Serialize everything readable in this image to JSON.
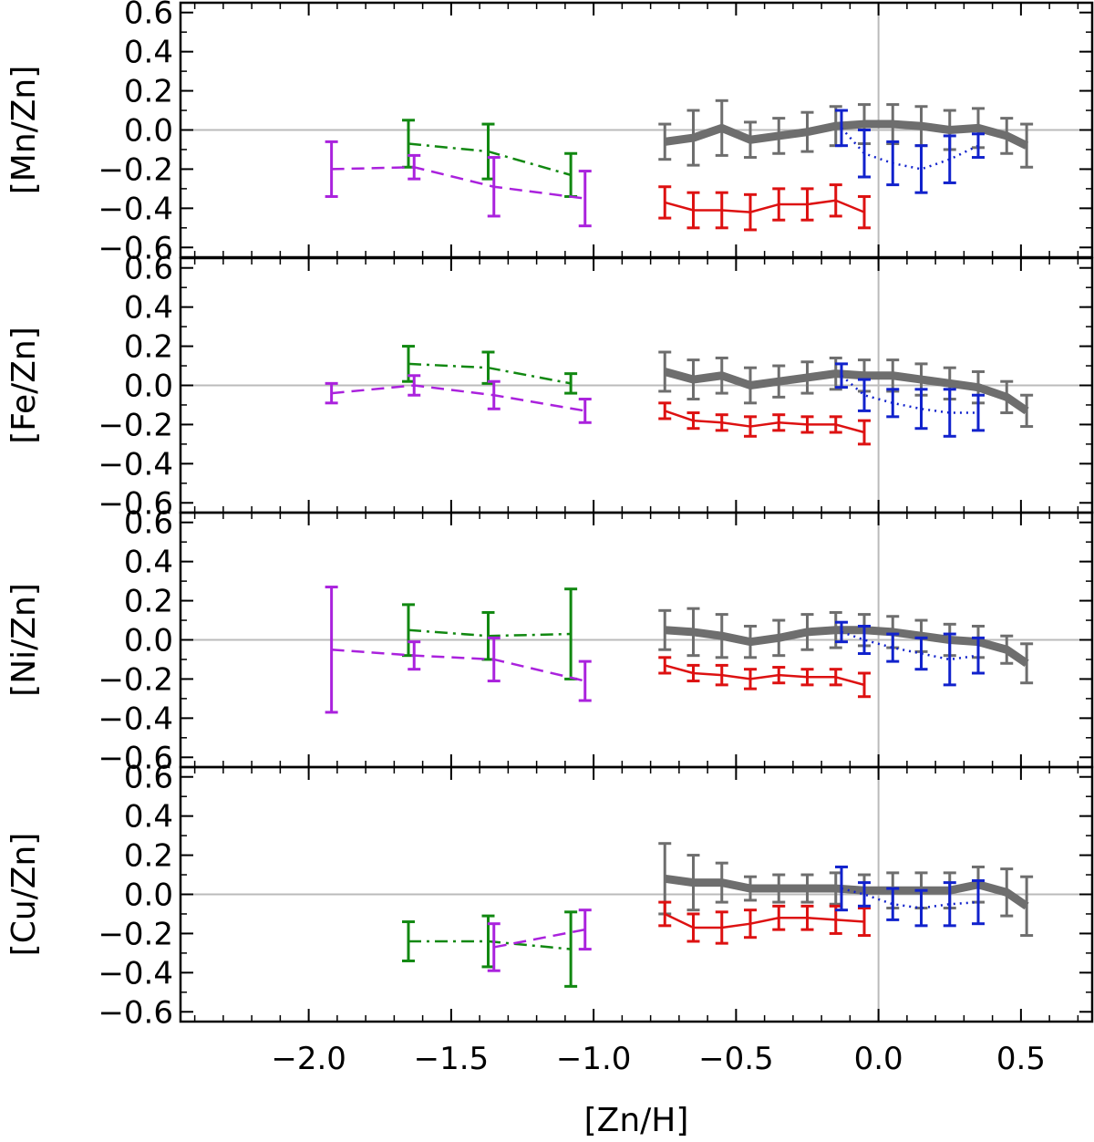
{
  "chart_data": {
    "type": "line",
    "xlabel": "[Zn/H]",
    "xlim": [
      -2.45,
      0.75
    ],
    "x_ticks": [
      -2.0,
      -1.5,
      -1.0,
      -0.5,
      0.0,
      0.5
    ],
    "x_tick_labels": [
      "−2.0",
      "−1.5",
      "−1.0",
      "−0.5",
      "0.0",
      "0.5"
    ],
    "ylim": [
      -0.65,
      0.65
    ],
    "y_ticks": [
      0.6,
      0.4,
      0.2,
      0.0,
      -0.2,
      -0.4,
      -0.6
    ],
    "y_tick_labels": [
      "0.6",
      "0.4",
      "0.2",
      "0.0",
      "−0.2",
      "−0.4",
      "−0.6"
    ],
    "reference_lines": {
      "x": 0.0,
      "y": 0.0,
      "color": "#bbbbbb"
    },
    "series_styles": {
      "grey": {
        "color": "#6e6e6e",
        "dash": "solid",
        "thick": true
      },
      "red": {
        "color": "#dd1111",
        "dash": "solid",
        "thick": false
      },
      "blue": {
        "color": "#1122cc",
        "dash": "dotted",
        "thick": false
      },
      "green": {
        "color": "#118811",
        "dash": "dashdot",
        "thick": false
      },
      "purple": {
        "color": "#aa22dd",
        "dash": "dashed",
        "thick": false
      }
    },
    "panels": [
      {
        "ylabel": "[Mn/Zn]",
        "series": [
          {
            "name": "grey",
            "x": [
              -0.75,
              -0.65,
              -0.55,
              -0.45,
              -0.35,
              -0.25,
              -0.15,
              -0.05,
              0.05,
              0.15,
              0.25,
              0.35,
              0.45,
              0.52
            ],
            "y": [
              -0.06,
              -0.04,
              0.01,
              -0.05,
              -0.03,
              -0.01,
              0.02,
              0.03,
              0.03,
              0.02,
              0.0,
              0.01,
              -0.03,
              -0.08
            ],
            "err": [
              0.09,
              0.14,
              0.14,
              0.09,
              0.09,
              0.1,
              0.1,
              0.1,
              0.1,
              0.1,
              0.1,
              0.1,
              0.09,
              0.11
            ]
          },
          {
            "name": "red",
            "x": [
              -0.75,
              -0.65,
              -0.55,
              -0.45,
              -0.35,
              -0.25,
              -0.15,
              -0.05
            ],
            "y": [
              -0.37,
              -0.41,
              -0.41,
              -0.42,
              -0.38,
              -0.38,
              -0.36,
              -0.42
            ],
            "err": [
              0.08,
              0.09,
              0.09,
              0.09,
              0.08,
              0.08,
              0.08,
              0.08
            ]
          },
          {
            "name": "blue",
            "x": [
              -0.13,
              -0.05,
              0.05,
              0.15,
              0.25,
              0.35
            ],
            "y": [
              0.01,
              -0.12,
              -0.17,
              -0.2,
              -0.15,
              -0.08
            ],
            "err": [
              0.09,
              0.12,
              0.11,
              0.12,
              0.12,
              0.06
            ]
          },
          {
            "name": "green",
            "x": [
              -1.65,
              -1.37,
              -1.08
            ],
            "y": [
              -0.07,
              -0.11,
              -0.23
            ],
            "err": [
              0.12,
              0.14,
              0.11
            ]
          },
          {
            "name": "purple",
            "x": [
              -1.92,
              -1.63,
              -1.35,
              -1.03
            ],
            "y": [
              -0.2,
              -0.19,
              -0.29,
              -0.35
            ],
            "err": [
              0.14,
              0.06,
              0.15,
              0.14
            ]
          }
        ]
      },
      {
        "ylabel": "[Fe/Zn]",
        "series": [
          {
            "name": "grey",
            "x": [
              -0.75,
              -0.65,
              -0.55,
              -0.45,
              -0.35,
              -0.25,
              -0.15,
              -0.05,
              0.05,
              0.15,
              0.25,
              0.35,
              0.45,
              0.52
            ],
            "y": [
              0.07,
              0.03,
              0.05,
              0.0,
              0.02,
              0.04,
              0.06,
              0.05,
              0.05,
              0.03,
              0.01,
              -0.01,
              -0.06,
              -0.13
            ],
            "err": [
              0.1,
              0.1,
              0.09,
              0.09,
              0.08,
              0.08,
              0.08,
              0.08,
              0.08,
              0.08,
              0.08,
              0.08,
              0.08,
              0.08
            ]
          },
          {
            "name": "red",
            "x": [
              -0.75,
              -0.65,
              -0.55,
              -0.45,
              -0.35,
              -0.25,
              -0.15,
              -0.05
            ],
            "y": [
              -0.13,
              -0.18,
              -0.19,
              -0.21,
              -0.19,
              -0.2,
              -0.2,
              -0.24
            ],
            "err": [
              0.04,
              0.04,
              0.04,
              0.05,
              0.04,
              0.04,
              0.04,
              0.06
            ]
          },
          {
            "name": "blue",
            "x": [
              -0.13,
              -0.05,
              0.05,
              0.15,
              0.25,
              0.35
            ],
            "y": [
              0.05,
              -0.05,
              -0.09,
              -0.12,
              -0.14,
              -0.14
            ],
            "err": [
              0.06,
              0.08,
              0.07,
              0.1,
              0.12,
              0.09
            ]
          },
          {
            "name": "green",
            "x": [
              -1.65,
              -1.37,
              -1.08
            ],
            "y": [
              0.11,
              0.09,
              0.01
            ],
            "err": [
              0.09,
              0.08,
              0.05
            ]
          },
          {
            "name": "purple",
            "x": [
              -1.92,
              -1.63,
              -1.35,
              -1.03
            ],
            "y": [
              -0.04,
              0.0,
              -0.05,
              -0.13
            ],
            "err": [
              0.05,
              0.05,
              0.07,
              0.06
            ]
          }
        ]
      },
      {
        "ylabel": "[Ni/Zn]",
        "series": [
          {
            "name": "grey",
            "x": [
              -0.75,
              -0.65,
              -0.55,
              -0.45,
              -0.35,
              -0.25,
              -0.15,
              -0.05,
              0.05,
              0.15,
              0.25,
              0.35,
              0.45,
              0.52
            ],
            "y": [
              0.05,
              0.04,
              0.02,
              -0.01,
              0.01,
              0.04,
              0.05,
              0.05,
              0.04,
              0.02,
              0.0,
              -0.01,
              -0.05,
              -0.12
            ],
            "err": [
              0.1,
              0.12,
              0.11,
              0.08,
              0.09,
              0.09,
              0.09,
              0.08,
              0.08,
              0.08,
              0.08,
              0.08,
              0.07,
              0.1
            ]
          },
          {
            "name": "red",
            "x": [
              -0.75,
              -0.65,
              -0.55,
              -0.45,
              -0.35,
              -0.25,
              -0.15,
              -0.05
            ],
            "y": [
              -0.13,
              -0.17,
              -0.18,
              -0.2,
              -0.18,
              -0.19,
              -0.19,
              -0.23
            ],
            "err": [
              0.04,
              0.04,
              0.05,
              0.05,
              0.04,
              0.04,
              0.04,
              0.06
            ]
          },
          {
            "name": "blue",
            "x": [
              -0.13,
              -0.05,
              0.05,
              0.15,
              0.25,
              0.35
            ],
            "y": [
              0.04,
              0.0,
              -0.04,
              -0.07,
              -0.1,
              -0.08
            ],
            "err": [
              0.05,
              0.07,
              0.07,
              0.08,
              0.13,
              0.09
            ]
          },
          {
            "name": "green",
            "x": [
              -1.65,
              -1.37,
              -1.08
            ],
            "y": [
              0.05,
              0.02,
              0.03
            ],
            "err": [
              0.13,
              0.12,
              0.23
            ]
          },
          {
            "name": "purple",
            "x": [
              -1.92,
              -1.63,
              -1.35,
              -1.03
            ],
            "y": [
              -0.05,
              -0.08,
              -0.1,
              -0.21
            ],
            "err": [
              0.32,
              0.07,
              0.11,
              0.1
            ]
          }
        ]
      },
      {
        "ylabel": "[Cu/Zn]",
        "series": [
          {
            "name": "grey",
            "x": [
              -0.75,
              -0.65,
              -0.55,
              -0.45,
              -0.35,
              -0.25,
              -0.15,
              -0.05,
              0.05,
              0.15,
              0.25,
              0.35,
              0.45,
              0.52
            ],
            "y": [
              0.08,
              0.06,
              0.06,
              0.03,
              0.03,
              0.03,
              0.03,
              0.02,
              0.02,
              0.02,
              0.02,
              0.05,
              0.01,
              -0.06
            ],
            "err": [
              0.18,
              0.14,
              0.1,
              0.06,
              0.07,
              0.07,
              0.08,
              0.08,
              0.09,
              0.09,
              0.09,
              0.09,
              0.12,
              0.15
            ]
          },
          {
            "name": "red",
            "x": [
              -0.75,
              -0.65,
              -0.55,
              -0.45,
              -0.35,
              -0.25,
              -0.15,
              -0.05
            ],
            "y": [
              -0.1,
              -0.17,
              -0.17,
              -0.15,
              -0.12,
              -0.12,
              -0.13,
              -0.14
            ],
            "err": [
              0.06,
              0.07,
              0.08,
              0.07,
              0.06,
              0.06,
              0.07,
              0.07
            ]
          },
          {
            "name": "blue",
            "x": [
              -0.13,
              -0.05,
              0.05,
              0.15,
              0.25,
              0.35
            ],
            "y": [
              0.03,
              0.0,
              -0.05,
              -0.07,
              -0.05,
              -0.04
            ],
            "err": [
              0.11,
              0.06,
              0.08,
              0.09,
              0.11,
              0.11
            ]
          },
          {
            "name": "green",
            "x": [
              -1.65,
              -1.37,
              -1.08
            ],
            "y": [
              -0.24,
              -0.24,
              -0.28
            ],
            "err": [
              0.1,
              0.13,
              0.19
            ]
          },
          {
            "name": "purple",
            "x": [
              -1.35,
              -1.03
            ],
            "y": [
              -0.27,
              -0.18
            ],
            "err": [
              0.12,
              0.1
            ]
          }
        ]
      }
    ]
  }
}
